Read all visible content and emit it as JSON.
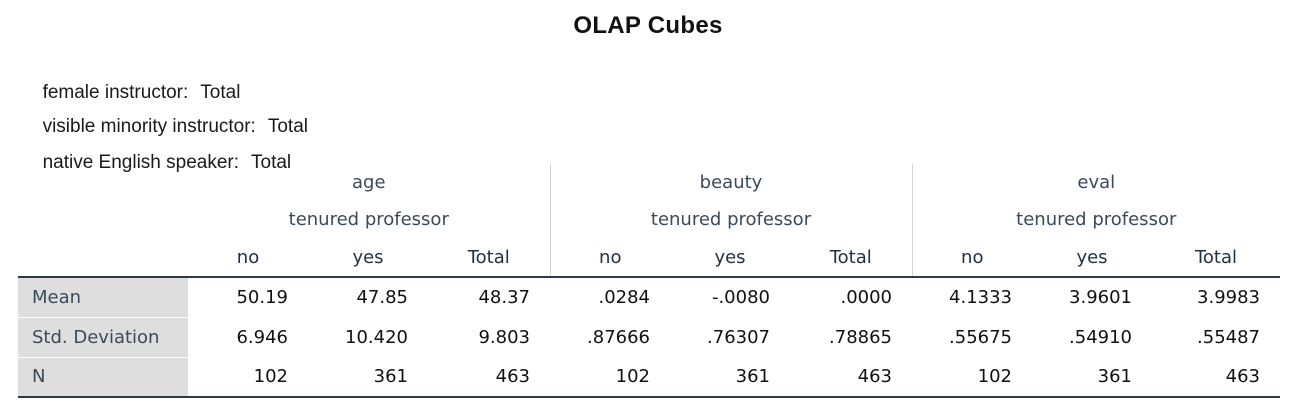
{
  "title": "OLAP Cubes",
  "layers": [
    {
      "label": "female instructor:",
      "value": "Total"
    },
    {
      "label": "visible minority instructor:",
      "value": "Total"
    },
    {
      "label": "native English speaker:",
      "value": "Total"
    }
  ],
  "table": {
    "variables": [
      "age",
      "beauty",
      "eval"
    ],
    "grouping_label": "tenured professor",
    "levels": [
      "no",
      "yes",
      "Total"
    ],
    "rows": [
      {
        "label": "Mean",
        "values": [
          "50.19",
          "47.85",
          "48.37",
          ".0284",
          "-.0080",
          ".0000",
          "4.1333",
          "3.9601",
          "3.9983"
        ]
      },
      {
        "label": "Std. Deviation",
        "values": [
          "6.946",
          "10.420",
          "9.803",
          ".87666",
          ".76307",
          ".78865",
          ".55675",
          ".54910",
          ".55487"
        ]
      },
      {
        "label": "N",
        "values": [
          "102",
          "361",
          "463",
          "102",
          "361",
          "463",
          "102",
          "361",
          "463"
        ]
      }
    ]
  }
}
